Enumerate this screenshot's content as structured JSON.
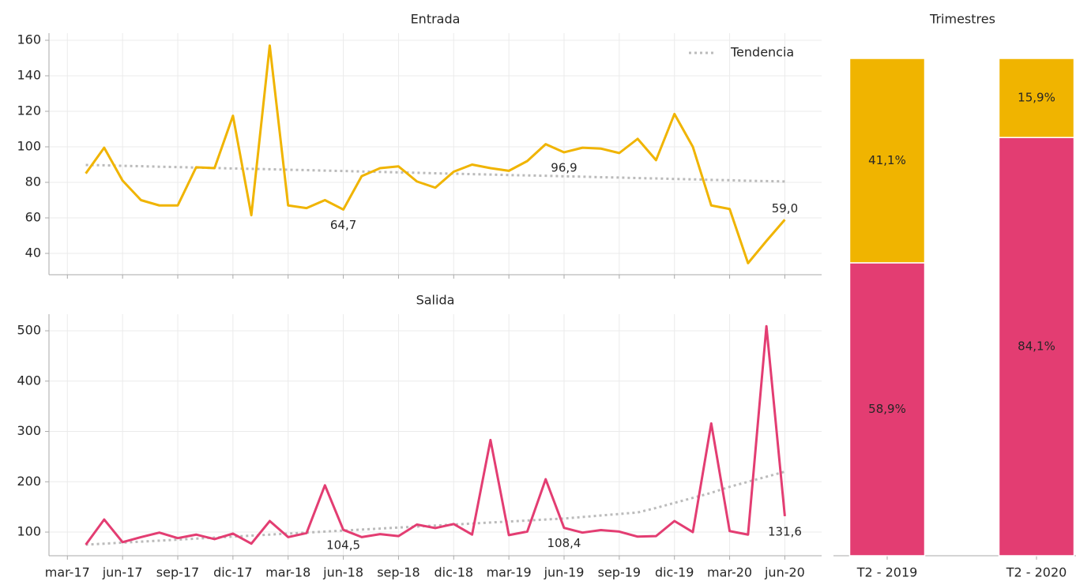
{
  "chart_data": [
    {
      "type": "line",
      "title": "Entrada",
      "x": [
        "2017-04",
        "2017-05",
        "2017-06",
        "2017-07",
        "2017-08",
        "2017-09",
        "2017-10",
        "2017-11",
        "2017-12",
        "2018-01",
        "2018-02",
        "2018-03",
        "2018-04",
        "2018-05",
        "2018-06",
        "2018-07",
        "2018-08",
        "2018-09",
        "2018-10",
        "2018-11",
        "2018-12",
        "2019-01",
        "2019-02",
        "2019-03",
        "2019-04",
        "2019-05",
        "2019-06",
        "2019-07",
        "2019-08",
        "2019-09",
        "2019-10",
        "2019-11",
        "2019-12",
        "2020-01",
        "2020-02",
        "2020-03",
        "2020-04",
        "2020-05",
        "2020-06"
      ],
      "xlim": [
        "2017-02",
        "2020-08"
      ],
      "ylim": [
        28,
        164
      ],
      "yticks": [
        40,
        60,
        80,
        100,
        120,
        140,
        160
      ],
      "grid": true,
      "legend": "upper right",
      "series": [
        {
          "color": "#f0b400",
          "values": [
            85,
            99.5,
            81,
            70,
            67,
            67,
            88.5,
            88,
            117.5,
            61.5,
            157,
            67,
            65.5,
            70,
            64.7,
            83.5,
            88,
            89,
            80.5,
            77,
            86,
            90,
            88,
            86.5,
            92,
            101.5,
            96.9,
            99.5,
            99,
            96.5,
            104.5,
            92.5,
            118.5,
            100,
            67,
            65,
            34.5,
            47,
            59.0
          ],
          "value_labels": [
            null,
            null,
            null,
            null,
            null,
            null,
            null,
            null,
            null,
            null,
            null,
            null,
            null,
            null,
            "64,7",
            null,
            null,
            null,
            null,
            null,
            null,
            null,
            null,
            null,
            null,
            null,
            "96,9",
            null,
            null,
            null,
            null,
            null,
            null,
            null,
            null,
            null,
            null,
            null,
            "59,0"
          ]
        },
        {
          "name": "Tendencia",
          "color": "#bbbbbb",
          "dashed": true,
          "values": [
            89.8,
            89.6,
            89.3,
            89.1,
            88.8,
            88.6,
            88.3,
            88.1,
            87.8,
            87.6,
            87.4,
            87.1,
            86.9,
            86.6,
            86.4,
            86.1,
            85.9,
            85.6,
            85.4,
            85.1,
            84.9,
            84.6,
            84.4,
            84.1,
            83.9,
            83.7,
            83.4,
            83.2,
            82.9,
            82.7,
            82.4,
            82.2,
            81.9,
            81.7,
            81.4,
            81.2,
            80.9,
            80.7,
            80.5
          ]
        }
      ]
    },
    {
      "type": "line",
      "title": "Salida",
      "x": [
        "2017-04",
        "2017-05",
        "2017-06",
        "2017-07",
        "2017-08",
        "2017-09",
        "2017-10",
        "2017-11",
        "2017-12",
        "2018-01",
        "2018-02",
        "2018-03",
        "2018-04",
        "2018-05",
        "2018-06",
        "2018-07",
        "2018-08",
        "2018-09",
        "2018-10",
        "2018-11",
        "2018-12",
        "2019-01",
        "2019-02",
        "2019-03",
        "2019-04",
        "2019-05",
        "2019-06",
        "2019-07",
        "2019-08",
        "2019-09",
        "2019-10",
        "2019-11",
        "2019-12",
        "2020-01",
        "2020-02",
        "2020-03",
        "2020-04",
        "2020-05",
        "2020-06"
      ],
      "xlim": [
        "2017-02",
        "2020-08"
      ],
      "xticks": [
        {
          "value": "2017-03",
          "label": "mar-17"
        },
        {
          "value": "2017-06",
          "label": "jun-17"
        },
        {
          "value": "2017-09",
          "label": "sep-17"
        },
        {
          "value": "2017-12",
          "label": "dic-17"
        },
        {
          "value": "2018-03",
          "label": "mar-18"
        },
        {
          "value": "2018-06",
          "label": "jun-18"
        },
        {
          "value": "2018-09",
          "label": "sep-18"
        },
        {
          "value": "2018-12",
          "label": "dic-18"
        },
        {
          "value": "2019-03",
          "label": "mar-19"
        },
        {
          "value": "2019-06",
          "label": "jun-19"
        },
        {
          "value": "2019-09",
          "label": "sep-19"
        },
        {
          "value": "2019-12",
          "label": "dic-19"
        },
        {
          "value": "2020-03",
          "label": "mar-20"
        },
        {
          "value": "2020-06",
          "label": "jun-20"
        }
      ],
      "ylim": [
        53,
        533
      ],
      "yticks": [
        100,
        200,
        300,
        400,
        500
      ],
      "grid": true,
      "series": [
        {
          "color": "#e33d72",
          "values": [
            75,
            125,
            80,
            90,
            99,
            88,
            95,
            86,
            97,
            77,
            122,
            90,
            98,
            193,
            104.5,
            90,
            96,
            92,
            115,
            108,
            116,
            95,
            283,
            94,
            101,
            205,
            108.4,
            99,
            104,
            101,
            91,
            92,
            122,
            100,
            316,
            102,
            95,
            509,
            131.6
          ],
          "value_labels": [
            null,
            null,
            null,
            null,
            null,
            null,
            null,
            null,
            null,
            null,
            null,
            null,
            null,
            null,
            "104,5",
            null,
            null,
            null,
            null,
            null,
            null,
            null,
            null,
            null,
            null,
            null,
            "108,4",
            null,
            null,
            null,
            null,
            null,
            null,
            null,
            null,
            null,
            null,
            null,
            "131,6"
          ]
        },
        {
          "color": "#bbbbbb",
          "dashed": true,
          "values": [
            75,
            77,
            79,
            81,
            83,
            85,
            87,
            89,
            91,
            93,
            95,
            97,
            99,
            101,
            103,
            105,
            107,
            109,
            111,
            113,
            115,
            117,
            119,
            121,
            123,
            125,
            127,
            130,
            133,
            136,
            139,
            148,
            158,
            168,
            178,
            190,
            200,
            210,
            220
          ]
        }
      ]
    },
    {
      "type": "stacked-bar",
      "title": "Trimestres",
      "categories": [
        "T2 - 2019",
        "T2 - 2020"
      ],
      "ylim": [
        0,
        100
      ],
      "series": [
        {
          "color": "#e33d72",
          "values": [
            58.9,
            84.1
          ],
          "value_labels": [
            "58,9%",
            "84,1%"
          ]
        },
        {
          "color": "#f0b400",
          "values": [
            41.1,
            15.9
          ],
          "value_labels": [
            "41,1%",
            "15,9%"
          ]
        }
      ]
    }
  ]
}
